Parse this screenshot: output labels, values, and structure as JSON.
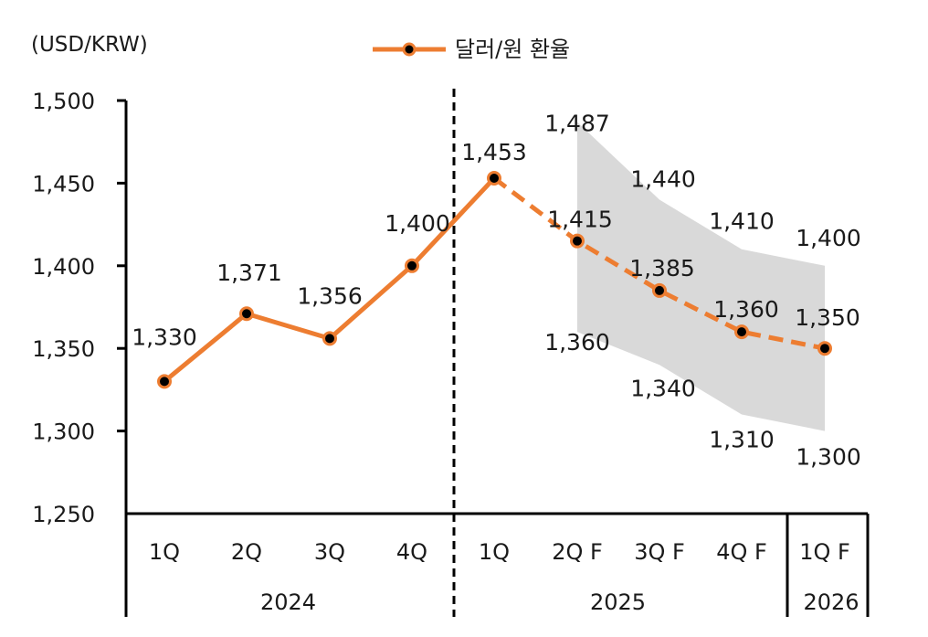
{
  "chart_data": {
    "type": "line",
    "y_unit_label": "(USD/KRW)",
    "legend": {
      "label": "달러/원 환율",
      "placement": "top-center"
    },
    "colors": {
      "line": "#ED7D31",
      "marker": "#000000",
      "band": "#D9D9D9"
    },
    "ylim": [
      1250,
      1500
    ],
    "yticks": [
      "1,500",
      "1,450",
      "1,400",
      "1,350",
      "1,300",
      "1,250"
    ],
    "ytick_values": [
      1500,
      1450,
      1400,
      1350,
      1300,
      1250
    ],
    "categories": [
      "1Q",
      "2Q",
      "3Q",
      "4Q",
      "1Q",
      "2Q F",
      "3Q F",
      "4Q F",
      "1Q F"
    ],
    "year_groups": [
      {
        "label": "2024",
        "span": [
          0,
          3
        ]
      },
      {
        "label": "2025",
        "span": [
          4,
          7
        ]
      },
      {
        "label": "2026",
        "span": [
          8,
          8
        ]
      }
    ],
    "series": [
      {
        "name": "달러/원 환율",
        "values": [
          1330,
          1371,
          1356,
          1400,
          1453,
          1415,
          1385,
          1360,
          1350
        ],
        "labels": [
          "1,330",
          "1,371",
          "1,356",
          "1,400",
          "1,453",
          "1,415",
          "1,385",
          "1,360",
          "1,350"
        ],
        "style": "solid through index 4, dashed forecast from index 4"
      }
    ],
    "forecast_band": {
      "indices": [
        5,
        6,
        7,
        8
      ],
      "upper": [
        1487,
        1440,
        1410,
        1400
      ],
      "upper_labels": [
        "1,487",
        "1,440",
        "1,410",
        "1,400"
      ],
      "lower": [
        1360,
        1340,
        1310,
        1300
      ],
      "lower_labels": [
        "1,360",
        "1,340",
        "1,310",
        "1,300"
      ]
    },
    "divider": "dashed vertical line between 4Q 2024 and 1Q 2025"
  }
}
